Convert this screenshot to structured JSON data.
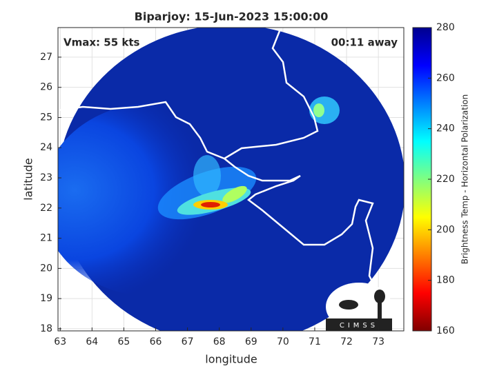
{
  "chart_data": {
    "type": "map",
    "title": "Biparjoy: 15-Jun-2023 15:00:00",
    "annotations": [
      "Vmax: 55 kts",
      "00:11 away"
    ],
    "x_label": "longitude",
    "y_label": "latitude",
    "xlim": [
      62.93,
      73.8
    ],
    "xticks": [
      63,
      64,
      65,
      66,
      67,
      68,
      69,
      70,
      71,
      72,
      73
    ],
    "ylim": [
      17.93,
      27.98
    ],
    "yticks": [
      18,
      19,
      20,
      21,
      22,
      23,
      24,
      25,
      26,
      27
    ],
    "grid": true,
    "colorbar": {
      "label": "Brightness Temp - Horizontal Polarization",
      "clim": [
        160,
        280
      ],
      "ticks": [
        160,
        180,
        200,
        220,
        240,
        260,
        280
      ],
      "colormap": [
        "#800000",
        "#ff0000",
        "#ff8000",
        "#ffff00",
        "#80ff80",
        "#00ffff",
        "#0080ff",
        "#0000ff",
        "#00008f"
      ]
    },
    "logo": "CIMSS"
  }
}
